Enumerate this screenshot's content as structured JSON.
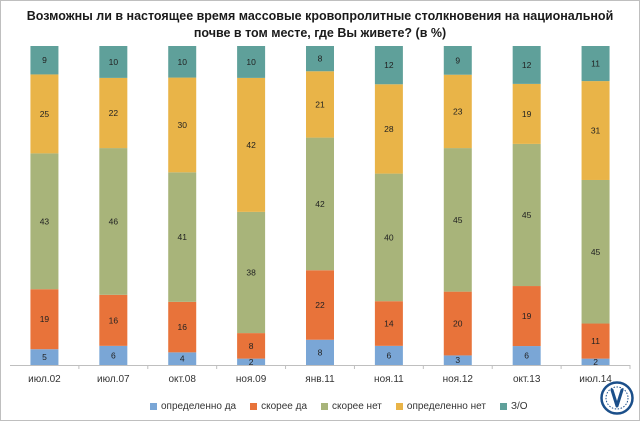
{
  "title": "Возможны ли в настоящее время массовые кровопролитные столкновения на национальной почве в том месте, где Вы живете? (в %)",
  "chart_data": {
    "type": "bar",
    "stacked": true,
    "percent": true,
    "title": "Возможны ли в настоящее время массовые кровопролитные столкновения на национальной почве в том месте, где Вы живете? (в %)",
    "categories": [
      "июл.02",
      "июл.07",
      "окт.08",
      "ноя.09",
      "янв.11",
      "ноя.11",
      "ноя.12",
      "окт.13",
      "июл.14"
    ],
    "series": [
      {
        "name": "определенно да",
        "color": "#7aa6d6",
        "values": [
          5,
          6,
          4,
          2,
          8,
          6,
          3,
          6,
          2
        ]
      },
      {
        "name": "скорее да",
        "color": "#e8733a",
        "values": [
          19,
          16,
          16,
          8,
          22,
          14,
          20,
          19,
          11
        ]
      },
      {
        "name": "скорее нет",
        "color": "#a8b47a",
        "values": [
          43,
          46,
          41,
          38,
          42,
          40,
          45,
          45,
          45
        ]
      },
      {
        "name": "определенно нет",
        "color": "#e9b448",
        "values": [
          25,
          22,
          30,
          42,
          21,
          28,
          23,
          19,
          31
        ]
      },
      {
        "name": "З/О",
        "color": "#5fa09a",
        "values": [
          9,
          10,
          10,
          10,
          8,
          12,
          9,
          12,
          11
        ]
      }
    ],
    "legend_position": "bottom",
    "grid": false
  },
  "logo": {
    "name": "levada-logo",
    "color": "#1b4f8a"
  }
}
